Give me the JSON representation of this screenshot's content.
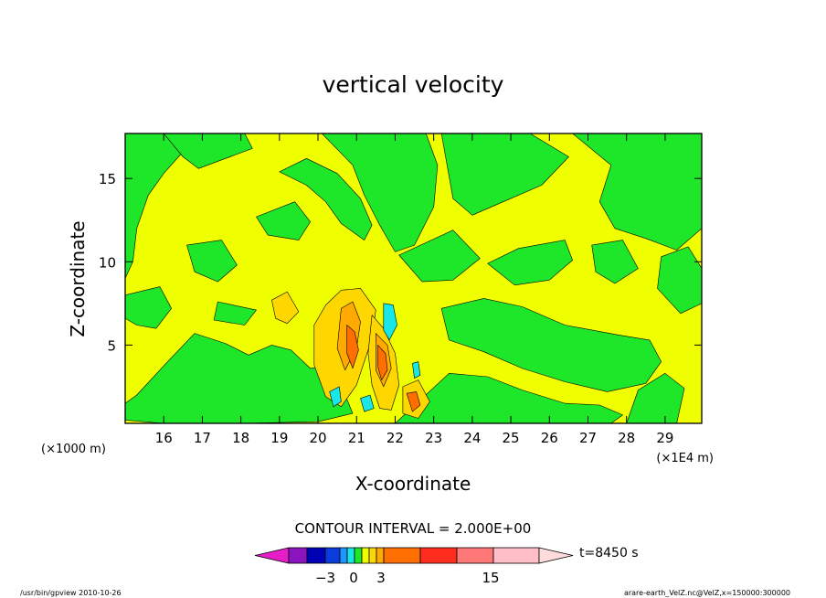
{
  "chart_data": {
    "type": "heatmap",
    "title": "vertical velocity",
    "xlabel": "X-coordinate",
    "ylabel": "Z-coordinate",
    "x_multiplier_label": "(×1E4 m)",
    "y_multiplier_label": "(×1000 m)",
    "xlim": [
      15.0,
      29.95
    ],
    "ylim": [
      0.3,
      17.7
    ],
    "x_ticks": [
      16,
      17,
      18,
      19,
      20,
      21,
      22,
      23,
      24,
      25,
      26,
      27,
      28,
      29
    ],
    "y_ticks": [
      5,
      10,
      15
    ],
    "contour_interval_label": "CONTOUR INTERVAL = 2.000E+00",
    "contour_interval": 2.0,
    "time_label": "t=8450 s",
    "colorbar_labels": [
      "−3",
      "0",
      "3",
      "15"
    ],
    "colorbar_colors": [
      "#e61ec8",
      "#8c14be",
      "#0000b4",
      "#0a3cdc",
      "#1e96ff",
      "#19e6e6",
      "#1ee628",
      "#f0ff00",
      "#ffd700",
      "#ffaa00",
      "#ff6e00",
      "#ff2d1e",
      "#ff7878",
      "#ffbec8",
      "#ffdcdc"
    ],
    "field_colors": {
      "strong_down": "#0a3cdc",
      "down": "#19e6e6",
      "weak_down": "#1ee628",
      "near_zero": "#f0ff00",
      "weak_up": "#ffd700",
      "up": "#ffaa00",
      "strong_up": "#ff6e00"
    },
    "grid": false
  },
  "footer": {
    "left": "/usr/bin/gpview   2010-10-26",
    "right": "arare-earth_VelZ.nc@VelZ,x=150000:300000"
  }
}
